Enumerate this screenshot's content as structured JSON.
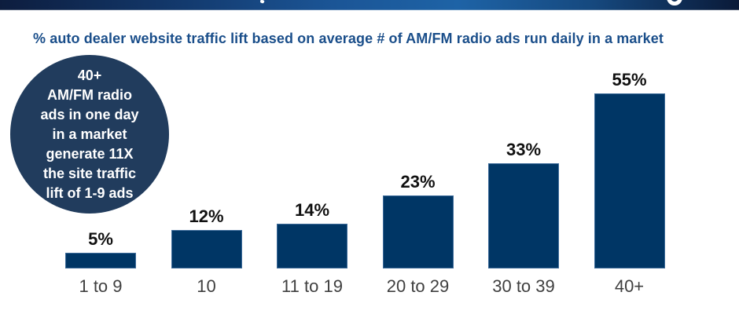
{
  "subtitle": "% auto dealer website traffic lift based on average # of AM/FM radio ads run daily in a market",
  "badge": {
    "lines": [
      "40+",
      "AM/FM radio",
      "ads in one day",
      "in a market",
      "generate 11X",
      "the site traffic",
      "lift of 1-9 ads"
    ]
  },
  "chart_data": {
    "type": "bar",
    "title": "% auto dealer website traffic lift based on average # of AM/FM radio ads run daily in a market",
    "categories": [
      "1 to 9",
      "10",
      "11 to 19",
      "20 to 29",
      "30 to 39",
      "40+"
    ],
    "values": [
      5,
      12,
      14,
      23,
      33,
      55
    ],
    "value_labels": [
      "5%",
      "12%",
      "14%",
      "23%",
      "33%",
      "55%"
    ],
    "xlabel": "",
    "ylabel": "",
    "ylim": [
      0,
      60
    ],
    "grid": false,
    "legend": false,
    "annotation": "40+ AM/FM radio ads in one day in a market generate 11X the site traffic lift of 1-9 ads",
    "colors": {
      "bar_fill": "#003665",
      "bar_border": "#3d6b9a",
      "badge_fill": "#213c5d",
      "title_text": "#1a4e8a",
      "value_text": "#111111",
      "category_text": "#3f3f3f",
      "banner_gradient_left": "#0d1d3e",
      "banner_gradient_mid": "#1e63a6",
      "banner_gradient_right": "#0a1a38"
    }
  }
}
